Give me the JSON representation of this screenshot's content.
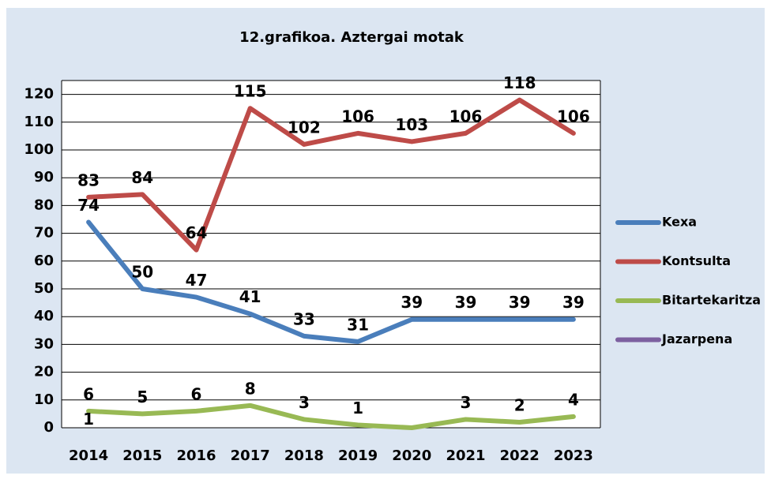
{
  "chart_data": {
    "type": "line",
    "title": "12.grafikoa. Aztergai motak",
    "categories": [
      "2014",
      "2015",
      "2016",
      "2017",
      "2018",
      "2019",
      "2020",
      "2021",
      "2022",
      "2023"
    ],
    "series": [
      {
        "name": "Kexa",
        "color": "#4a7ebb",
        "values": [
          74,
          50,
          47,
          41,
          33,
          31,
          39,
          39,
          39,
          39
        ]
      },
      {
        "name": "Kontsulta",
        "color": "#be4b48",
        "values": [
          83,
          84,
          64,
          115,
          102,
          106,
          103,
          106,
          118,
          106
        ]
      },
      {
        "name": "Bitartekaritza",
        "color": "#98b954",
        "values": [
          6,
          5,
          6,
          8,
          3,
          1,
          0,
          3,
          2,
          4
        ],
        "value_labels": [
          "6",
          "5",
          "6",
          "8",
          "3",
          "1",
          null,
          "3",
          "2",
          "4"
        ]
      },
      {
        "name": "Jazarpena",
        "color": "#7d60a0",
        "values": [
          1,
          null,
          null,
          null,
          null,
          null,
          null,
          null,
          null,
          null
        ]
      }
    ],
    "ylim": [
      0,
      125
    ],
    "yticks": [
      0,
      10,
      20,
      30,
      40,
      50,
      60,
      70,
      80,
      90,
      100,
      110,
      120
    ],
    "grid": true,
    "legend": "right"
  }
}
